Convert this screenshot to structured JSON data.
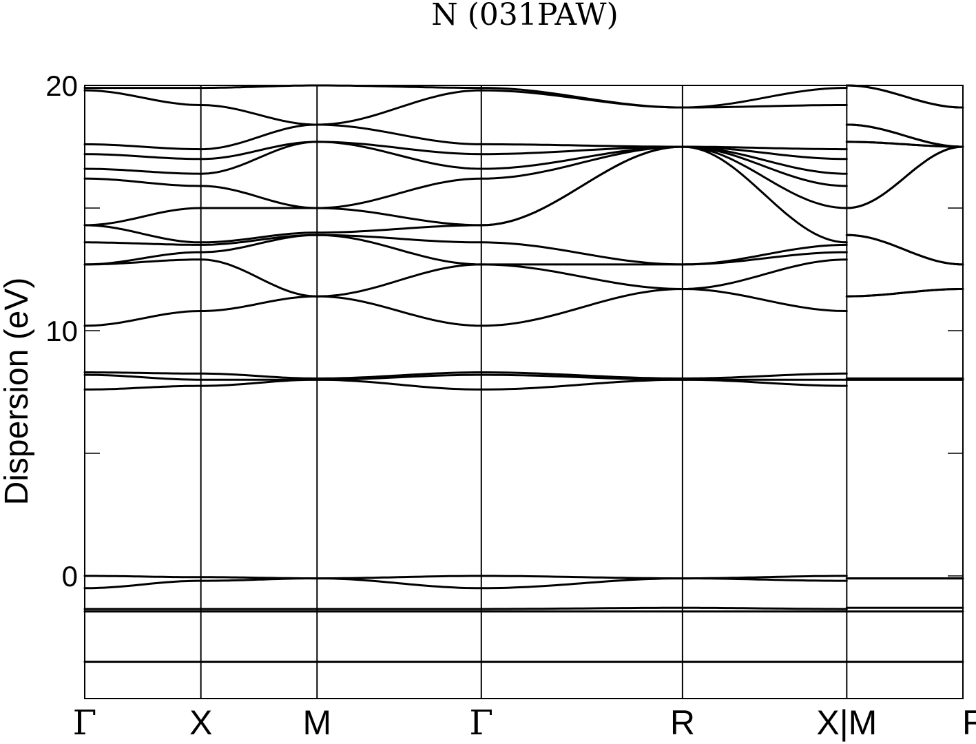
{
  "chart_data": {
    "type": "line",
    "title": "N (031PAW)",
    "ylabel": "Dispersion (eV)",
    "xlabel": "",
    "ylim": [
      -5,
      20
    ],
    "yticks": [
      0,
      10,
      20
    ],
    "yminor_ticks": [
      -5,
      5,
      15
    ],
    "kpath": [
      {
        "label": "Γ",
        "pos": 0.0
      },
      {
        "label": "X",
        "pos": 0.5
      },
      {
        "label": "M",
        "pos": 1.0
      },
      {
        "label": "Γ",
        "pos": 1.707
      },
      {
        "label": "R",
        "pos": 2.573
      },
      {
        "label": "X|M",
        "pos": 3.28
      },
      {
        "label": "R",
        "pos": 3.78
      }
    ],
    "grid": false,
    "bands": [
      {
        "x": [
          0,
          0.5,
          1.0,
          1.707,
          2.573,
          3.28
        ],
        "y": [
          -3.5,
          -3.5,
          -3.5,
          -3.5,
          -3.5,
          -3.5
        ],
        "segment_end": [
          3.28,
          3.78
        ],
        "tail": [
          -3.5,
          -3.5
        ]
      },
      {
        "x": [
          0,
          0.5,
          1.0,
          1.707,
          2.573,
          3.28
        ],
        "y": [
          -1.45,
          -1.45,
          -1.45,
          -1.45,
          -1.45,
          -1.45
        ],
        "tail": [
          -1.45,
          -1.45
        ]
      },
      {
        "x": [
          0,
          0.5,
          1.0,
          1.707,
          2.573,
          3.28
        ],
        "y": [
          -1.35,
          -1.35,
          -1.35,
          -1.35,
          -1.3,
          -1.35
        ],
        "tail": [
          -1.3,
          -1.3
        ]
      },
      {
        "x": [
          0,
          0.5,
          1.0,
          1.707,
          2.573,
          3.28
        ],
        "y": [
          -0.5,
          -0.2,
          -0.1,
          -0.5,
          -0.1,
          -0.2
        ],
        "tail": [
          -0.1,
          -0.1
        ]
      },
      {
        "x": [
          0,
          0.5,
          1.0,
          1.707,
          2.573,
          3.28
        ],
        "y": [
          0.0,
          -0.05,
          -0.1,
          0.0,
          -0.1,
          0.0
        ],
        "tail": [
          -0.1,
          -0.1
        ]
      },
      {
        "x": [
          0,
          0.5,
          1.0,
          1.707,
          2.573,
          3.28
        ],
        "y": [
          7.6,
          7.75,
          8.0,
          7.6,
          8.0,
          7.75
        ],
        "tail": [
          8.0,
          8.0
        ]
      },
      {
        "x": [
          0,
          0.5,
          1.0,
          1.707,
          2.573,
          3.28
        ],
        "y": [
          8.2,
          8.0,
          8.0,
          8.2,
          8.0,
          8.0
        ],
        "tail": [
          8.0,
          8.0
        ]
      },
      {
        "x": [
          0,
          0.5,
          1.0,
          1.707,
          2.573,
          3.28
        ],
        "y": [
          8.3,
          8.25,
          8.05,
          8.3,
          8.05,
          8.25
        ],
        "tail": [
          8.05,
          8.05
        ]
      },
      {
        "x": [
          0,
          0.5,
          1.0,
          1.707,
          2.573,
          3.28
        ],
        "y": [
          10.2,
          10.8,
          11.4,
          10.2,
          11.7,
          10.8
        ],
        "tail": [
          11.4,
          11.7
        ]
      },
      {
        "x": [
          0,
          0.5,
          1.0,
          1.707,
          2.573,
          3.28
        ],
        "y": [
          12.7,
          12.9,
          11.4,
          12.7,
          11.7,
          12.9
        ],
        "tail": [
          11.4,
          11.7
        ]
      },
      {
        "x": [
          0,
          0.5,
          1.0,
          1.707,
          2.573,
          3.28
        ],
        "y": [
          12.7,
          13.2,
          13.9,
          12.7,
          12.7,
          13.2
        ],
        "tail": [
          13.9,
          12.7
        ]
      },
      {
        "x": [
          0,
          0.5,
          1.0,
          1.707,
          2.573,
          3.28
        ],
        "y": [
          13.6,
          13.5,
          13.9,
          13.6,
          12.7,
          13.5
        ],
        "tail": [
          13.9,
          12.7
        ]
      },
      {
        "x": [
          0,
          0.5,
          1.0,
          1.707,
          2.573,
          3.28
        ],
        "y": [
          14.3,
          13.6,
          14.0,
          14.3,
          17.5,
          13.6
        ],
        "tail": [
          15.0,
          17.5
        ]
      },
      {
        "x": [
          0,
          0.5,
          1.0,
          1.707,
          2.573,
          3.28
        ],
        "y": [
          14.3,
          15.0,
          15.0,
          14.3,
          17.5,
          15.0
        ],
        "tail": [
          15.0,
          17.5
        ]
      },
      {
        "x": [
          0,
          0.5,
          1.0,
          1.707,
          2.573,
          3.28
        ],
        "y": [
          16.2,
          15.9,
          15.0,
          16.2,
          17.5,
          15.9
        ],
        "tail": [
          17.7,
          17.5
        ]
      },
      {
        "x": [
          0,
          0.5,
          1.0,
          1.707,
          2.573,
          3.28
        ],
        "y": [
          16.6,
          16.4,
          17.7,
          16.6,
          17.5,
          16.4
        ],
        "tail": [
          17.7,
          17.5
        ]
      },
      {
        "x": [
          0,
          0.5,
          1.0,
          1.707,
          2.573,
          3.28
        ],
        "y": [
          17.2,
          17.0,
          17.7,
          17.2,
          17.5,
          17.0
        ],
        "tail": [
          18.4,
          17.5
        ]
      },
      {
        "x": [
          0,
          0.5,
          1.0,
          1.707,
          2.573,
          3.28
        ],
        "y": [
          17.6,
          17.4,
          18.4,
          17.6,
          17.5,
          17.4
        ],
        "tail": [
          18.4,
          17.5
        ]
      },
      {
        "x": [
          0,
          0.5,
          1.0,
          1.707,
          2.573,
          3.28
        ],
        "y": [
          19.8,
          19.2,
          18.4,
          19.8,
          19.1,
          19.2
        ],
        "tail": [
          20.0,
          19.1
        ]
      },
      {
        "x": [
          0,
          0.5,
          1.0,
          1.707,
          2.573,
          3.28
        ],
        "y": [
          19.9,
          19.9,
          20.0,
          19.9,
          19.1,
          19.9
        ],
        "tail": [
          20.0,
          19.1
        ]
      }
    ]
  }
}
